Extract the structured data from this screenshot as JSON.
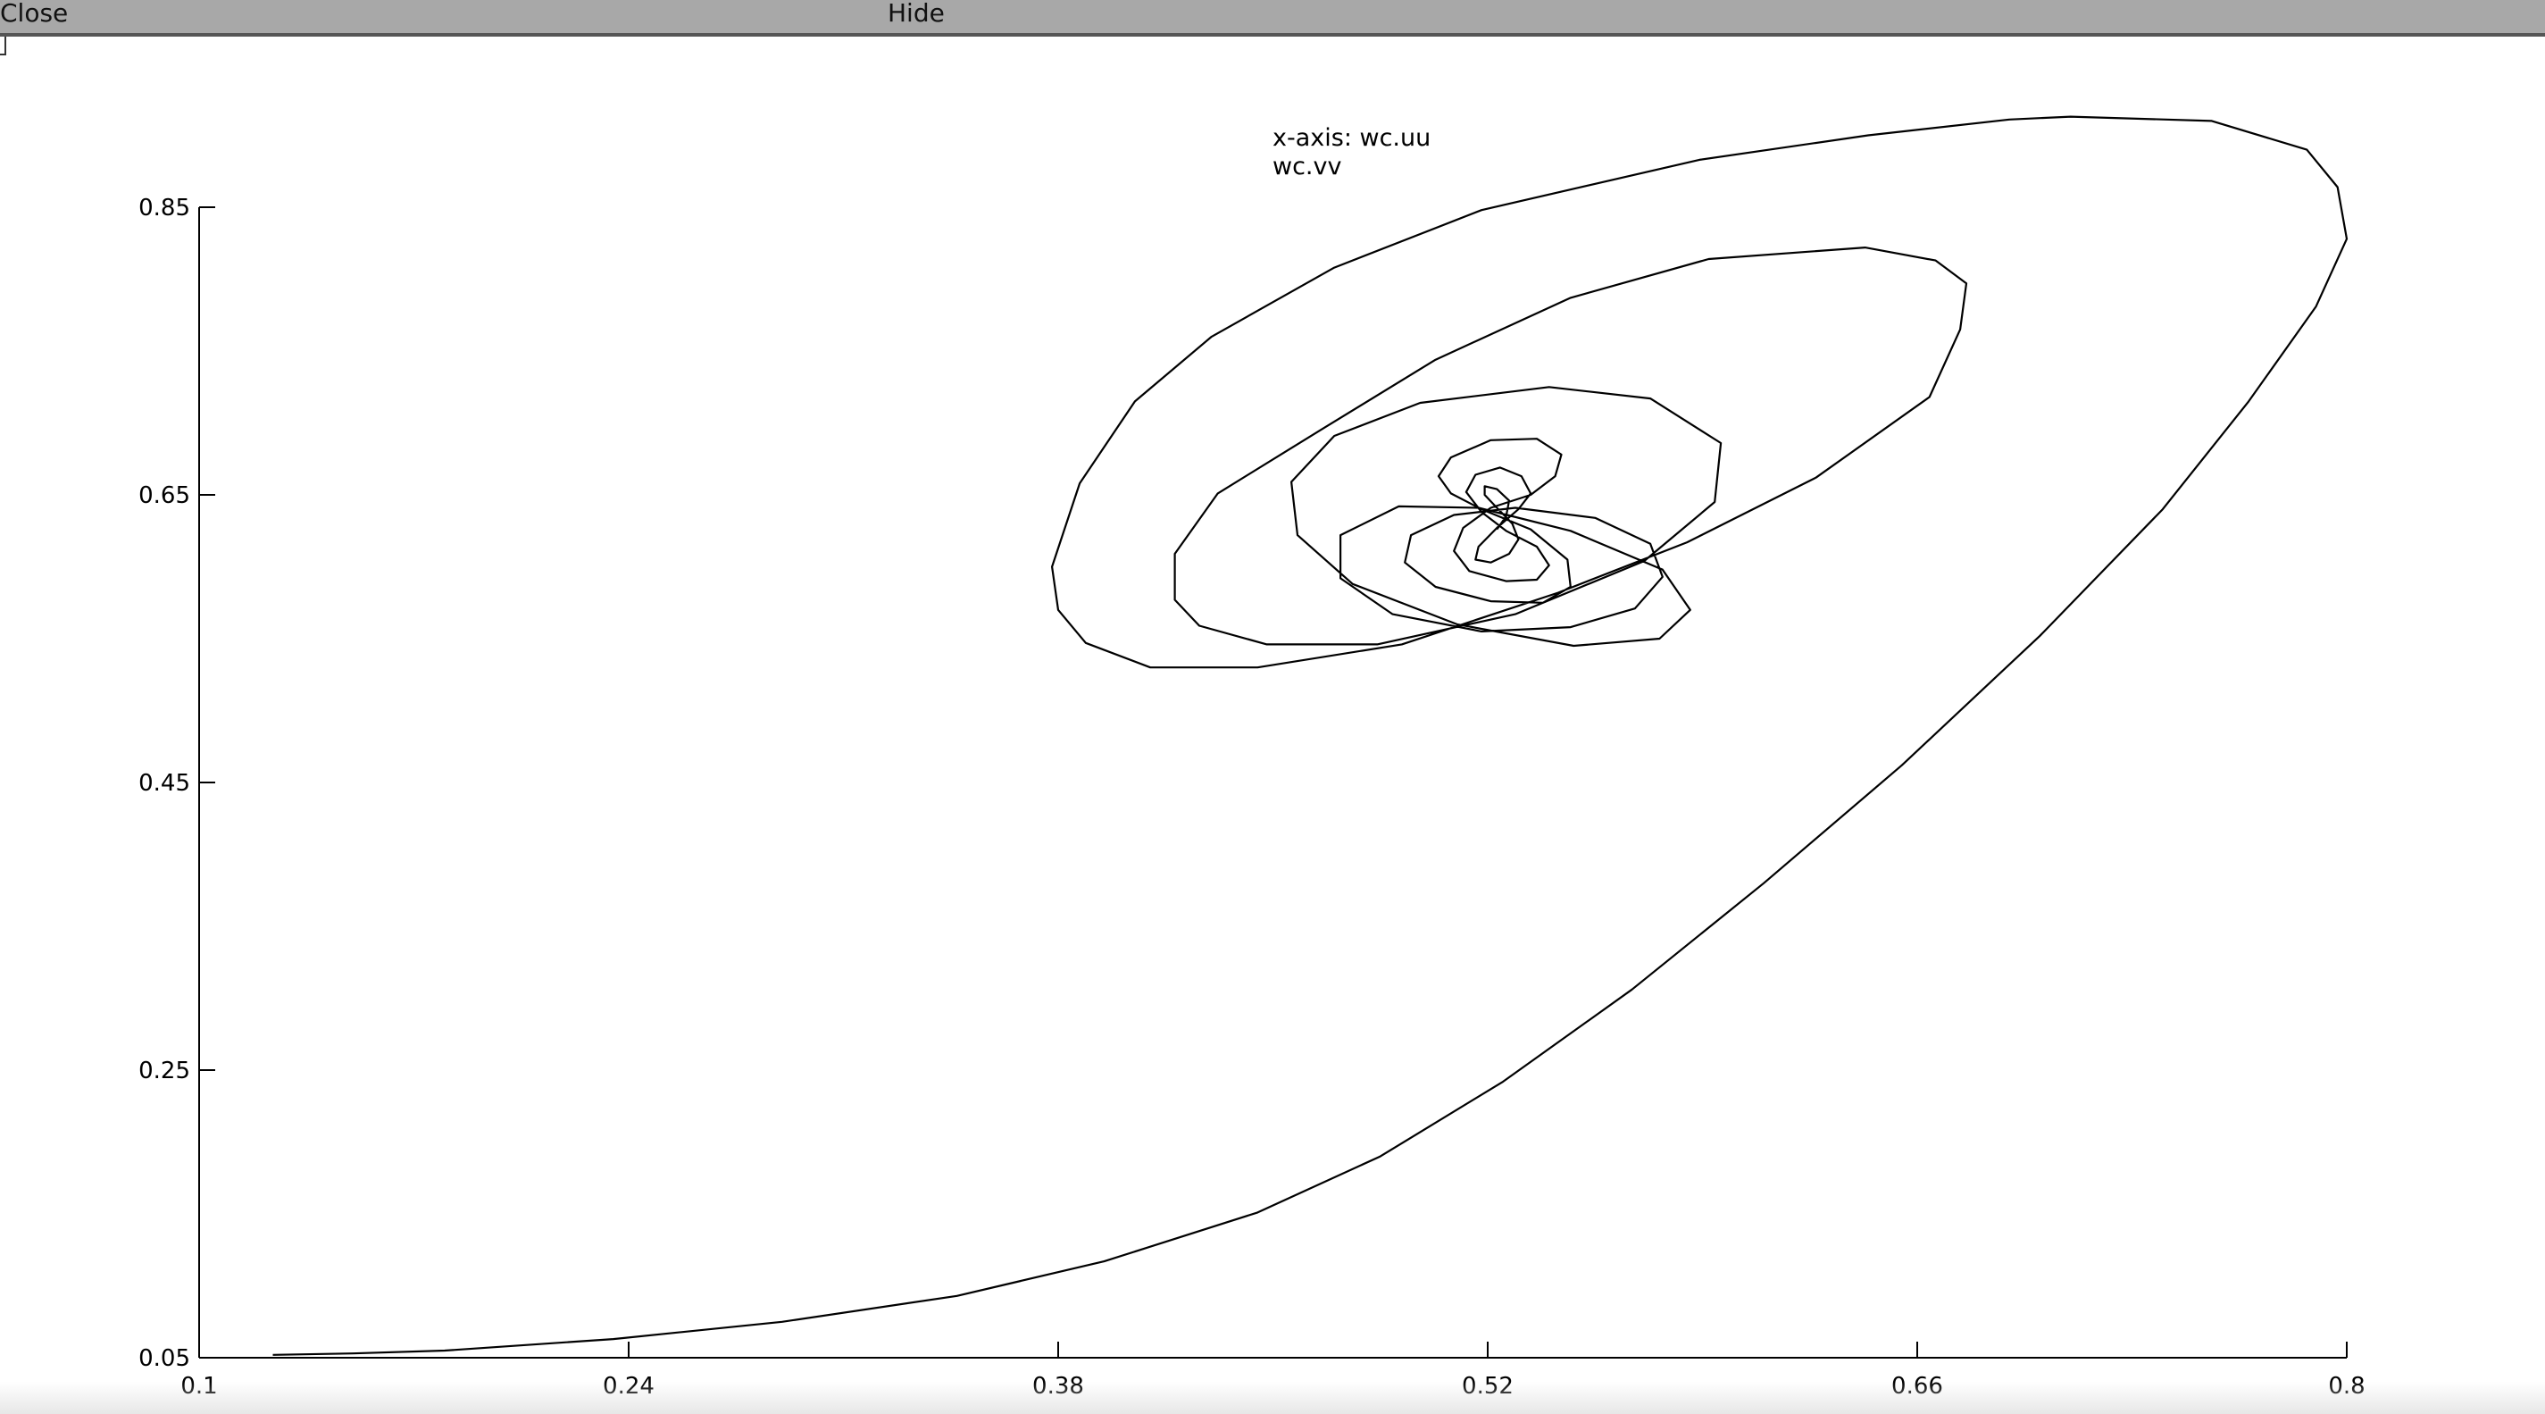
{
  "toolbar": {
    "close_label": "Close",
    "hide_label": "Hide"
  },
  "chart_data": {
    "type": "line",
    "legend_lines": [
      "x-axis: wc.uu",
      "wc.vv"
    ],
    "xticks": [
      "0.1",
      "0.24",
      "0.38",
      "0.52",
      "0.66",
      "0.8"
    ],
    "yticks": [
      "0.05",
      "0.25",
      "0.45",
      "0.65",
      "0.85"
    ],
    "xlim": [
      0.1,
      0.8
    ],
    "ylim": [
      0.05,
      0.85
    ],
    "grid": false,
    "series": [
      {
        "color": "#000000",
        "x": [
          0.124,
          0.15,
          0.18,
          0.235,
          0.29,
          0.347,
          0.395,
          0.445,
          0.485,
          0.525,
          0.567,
          0.61,
          0.655,
          0.7,
          0.74,
          0.768,
          0.79,
          0.8,
          0.797,
          0.787,
          0.756,
          0.71,
          0.69,
          0.644,
          0.589,
          0.518,
          0.47,
          0.43,
          0.405,
          0.387,
          0.378,
          0.38,
          0.389,
          0.41,
          0.445,
          0.492,
          0.543,
          0.585,
          0.627,
          0.664,
          0.674,
          0.676,
          0.666,
          0.643,
          0.592,
          0.547,
          0.503,
          0.467,
          0.432,
          0.418,
          0.418,
          0.426,
          0.448,
          0.484,
          0.529,
          0.571,
          0.594,
          0.596,
          0.573,
          0.54,
          0.498,
          0.47,
          0.456,
          0.458,
          0.476,
          0.51,
          0.548,
          0.576,
          0.586,
          0.577,
          0.547,
          0.517,
          0.491,
          0.472,
          0.472,
          0.489,
          0.518,
          0.547,
          0.568,
          0.577,
          0.573,
          0.555,
          0.529,
          0.509,
          0.495,
          0.493,
          0.503,
          0.521,
          0.538,
          0.547,
          0.546,
          0.534,
          0.518,
          0.508,
          0.504,
          0.508,
          0.521,
          0.536,
          0.544,
          0.542,
          0.534,
          0.521,
          0.512,
          0.509,
          0.514,
          0.526,
          0.536,
          0.54,
          0.536,
          0.526,
          0.518,
          0.513,
          0.516,
          0.524,
          0.531,
          0.534,
          0.53,
          0.523,
          0.517,
          0.516,
          0.521,
          0.527,
          0.53,
          0.528,
          0.523,
          0.519,
          0.519,
          0.523,
          0.527,
          0.526,
          0.523
        ],
        "y": [
          0.052,
          0.053,
          0.055,
          0.063,
          0.075,
          0.093,
          0.117,
          0.151,
          0.19,
          0.242,
          0.306,
          0.38,
          0.462,
          0.552,
          0.64,
          0.715,
          0.781,
          0.828,
          0.864,
          0.89,
          0.91,
          0.913,
          0.911,
          0.9,
          0.883,
          0.848,
          0.808,
          0.76,
          0.715,
          0.658,
          0.6,
          0.57,
          0.547,
          0.53,
          0.53,
          0.546,
          0.582,
          0.617,
          0.662,
          0.718,
          0.765,
          0.797,
          0.813,
          0.822,
          0.814,
          0.787,
          0.744,
          0.697,
          0.651,
          0.609,
          0.577,
          0.559,
          0.546,
          0.546,
          0.567,
          0.604,
          0.645,
          0.686,
          0.717,
          0.725,
          0.714,
          0.691,
          0.659,
          0.622,
          0.588,
          0.56,
          0.545,
          0.55,
          0.57,
          0.598,
          0.625,
          0.641,
          0.642,
          0.622,
          0.592,
          0.567,
          0.555,
          0.558,
          0.571,
          0.593,
          0.616,
          0.634,
          0.641,
          0.636,
          0.622,
          0.603,
          0.586,
          0.576,
          0.575,
          0.586,
          0.605,
          0.626,
          0.64,
          0.651,
          0.663,
          0.676,
          0.688,
          0.689,
          0.678,
          0.663,
          0.65,
          0.641,
          0.627,
          0.611,
          0.597,
          0.59,
          0.591,
          0.601,
          0.614,
          0.625,
          0.638,
          0.652,
          0.664,
          0.669,
          0.663,
          0.651,
          0.64,
          0.627,
          0.614,
          0.605,
          0.603,
          0.609,
          0.619,
          0.63,
          0.641,
          0.65,
          0.656,
          0.654,
          0.646,
          0.635,
          0.626
        ]
      }
    ]
  }
}
